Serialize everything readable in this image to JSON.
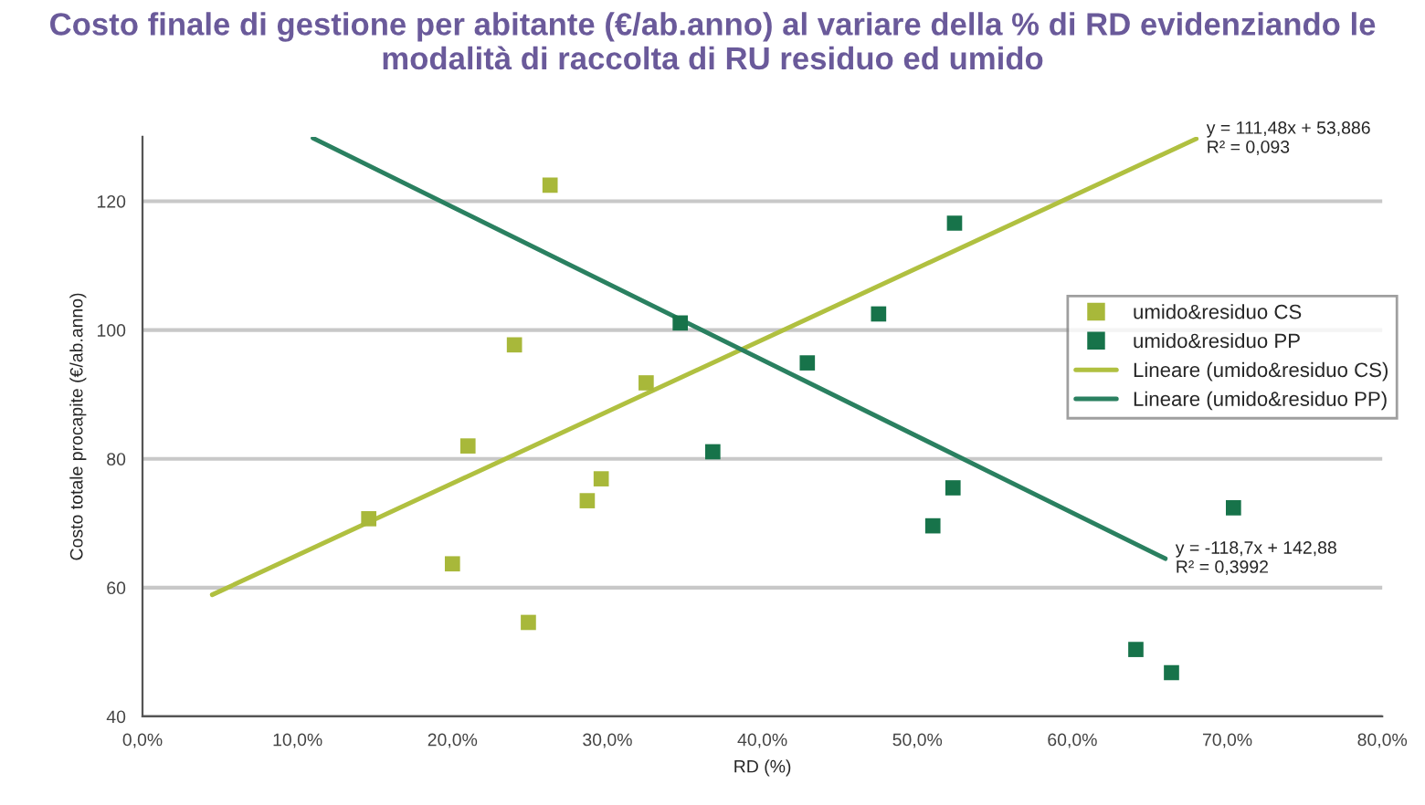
{
  "chart_data": {
    "type": "scatter",
    "title": "Costo finale di gestione per abitante (€/ab.anno) al variare della % di RD evidenziando le modalità di raccolta di RU residuo ed umido",
    "xlabel": "RD (%)",
    "ylabel": "Costo totale procapite (€/ab.anno)",
    "series": [
      {
        "name": "umido&residuo CS",
        "marker": "square",
        "color": "#a8b83a",
        "x": [
          0.146,
          0.2,
          0.21,
          0.24,
          0.249,
          0.263,
          0.287,
          0.296,
          0.325
        ],
        "values": [
          70.7,
          63.7,
          82,
          97.7,
          54.6,
          122.5,
          73.5,
          76.9,
          91.8
        ]
      },
      {
        "name": "umido&residuo PP",
        "marker": "square",
        "color": "#17734a",
        "x": [
          0.347,
          0.368,
          0.429,
          0.475,
          0.524,
          0.523,
          0.51,
          0.641,
          0.664,
          0.704
        ],
        "values": [
          101.1,
          81.1,
          94.9,
          102.5,
          116.6,
          75.5,
          69.6,
          50.4,
          46.8,
          72.4
        ]
      },
      {
        "name": "Lineare (umido&residuo CS)",
        "type": "line",
        "marker": "none",
        "color": "#b0c040",
        "x": [
          0.045,
          0.68
        ],
        "values": [
          58.9,
          129.7
        ]
      },
      {
        "name": "Lineare (umido&residuo PP)",
        "type": "line",
        "marker": "none",
        "color": "#2a8060",
        "x": [
          0.11,
          0.66
        ],
        "values": [
          129.8,
          64.5
        ]
      }
    ],
    "annotations": [
      {
        "text": "y = 111,48x + 53,886\nR² = 0,093",
        "x": 0.68,
        "y": 129.7
      },
      {
        "text": "y = -118,7x + 142,88\nR² = 0,3992",
        "x": 0.66,
        "y": 64.5
      }
    ],
    "xlim": [
      0,
      0.8
    ],
    "xticks": [
      {
        "value": 0,
        "label": "0,0%"
      },
      {
        "value": 0.1,
        "label": "10,0%"
      },
      {
        "value": 0.2,
        "label": "20,0%"
      },
      {
        "value": 0.3,
        "label": "30,0%"
      },
      {
        "value": 0.4,
        "label": "40,0%"
      },
      {
        "value": 0.5,
        "label": "50,0%"
      },
      {
        "value": 0.6,
        "label": "60,0%"
      },
      {
        "value": 0.7,
        "label": "70,0%"
      },
      {
        "value": 0.8,
        "label": "80,0%"
      }
    ],
    "ylim": [
      40,
      130
    ],
    "yticks": [
      40,
      60,
      80,
      100,
      120
    ],
    "grid": "y",
    "legend": "right"
  }
}
